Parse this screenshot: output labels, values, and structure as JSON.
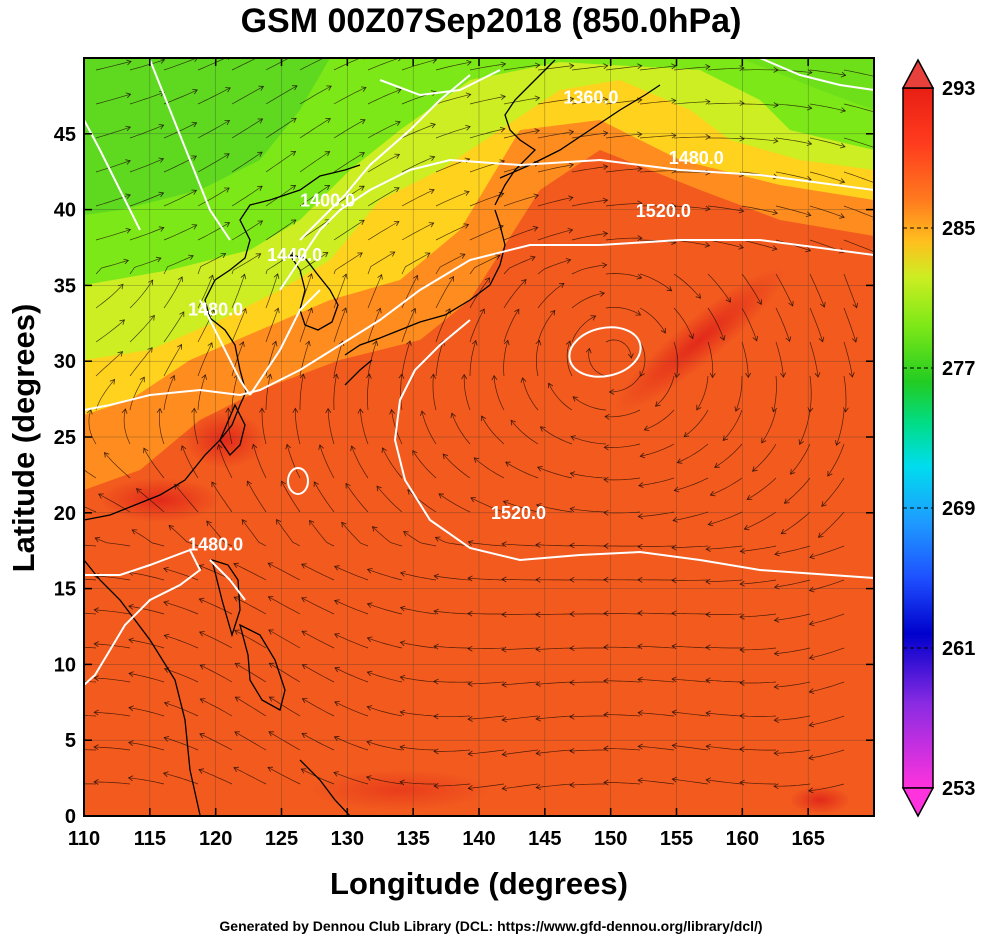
{
  "title": "GSM 00Z07Sep2018 (850.0hPa)",
  "xlabel": "Longitude (degrees)",
  "ylabel": "Latitude  (degrees)",
  "footer": "Generated by Dennou Club Library (DCL: https://www.gfd-dennou.org/library/dcl/)",
  "map": {
    "lon_range": [
      110,
      170
    ],
    "lat_range": [
      0,
      50
    ],
    "lon_ticks": [
      110,
      115,
      120,
      125,
      130,
      135,
      140,
      145,
      150,
      155,
      160,
      165
    ],
    "lat_ticks": [
      0,
      5,
      10,
      15,
      20,
      25,
      30,
      35,
      40,
      45
    ],
    "grid": true
  },
  "colorbar": {
    "min": 253,
    "max": 293,
    "tick_labels": [
      "293",
      "285",
      "277",
      "269",
      "261",
      "253"
    ],
    "colors": [
      "#ff33dd",
      "#8a2be2",
      "#0000cc",
      "#1e6bff",
      "#00c8ff",
      "#00e0b0",
      "#22cc22",
      "#7de817",
      "#ccee22",
      "#ffd21e",
      "#ff8c1e",
      "#ff3c1e",
      "#e81e14"
    ]
  },
  "contours": [
    {
      "label": "1360.0",
      "lon": 148.5,
      "lat": 47.0
    },
    {
      "label": "1400.0",
      "lon": 128.5,
      "lat": 40.2
    },
    {
      "label": "1440.0",
      "lon": 126.0,
      "lat": 36.6
    },
    {
      "label": "1480.0",
      "lon": 120.0,
      "lat": 33.0
    },
    {
      "label": "1480.0",
      "lon": 156.5,
      "lat": 43.0
    },
    {
      "label": "1480.0",
      "lon": 120.0,
      "lat": 17.5
    },
    {
      "label": "1520.0",
      "lon": 154.0,
      "lat": 39.5
    },
    {
      "label": "1520.0",
      "lon": 143.0,
      "lat": 19.6
    }
  ]
}
